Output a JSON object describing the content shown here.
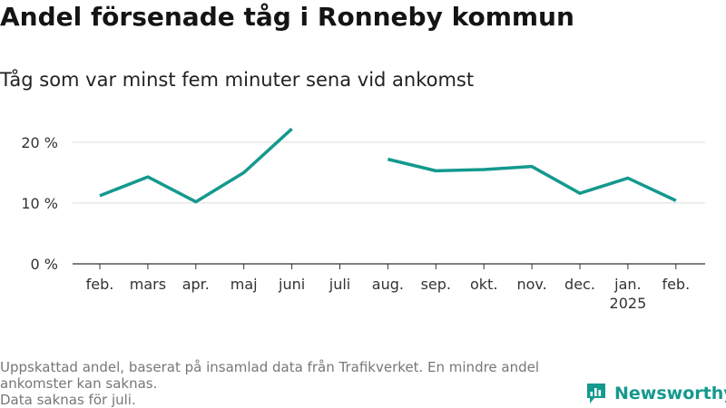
{
  "title": "Andel försenade tåg i Ronneby kommun",
  "subtitle": "Tåg som var minst fem minuter sena vid ankomst",
  "footnotes": [
    "Uppskattad andel, baserat på insamlad data från Trafikverket. En mindre andel ankomster kan saknas.",
    "Data saknas för juli."
  ],
  "brand": {
    "name": "Newsworthy",
    "icon": "newsworthy-logo-icon"
  },
  "colors": {
    "line": "#14998e",
    "grid": "#dddddd",
    "axis": "#333333"
  },
  "chart_data": {
    "type": "line",
    "title": "Andel försenade tåg i Ronneby kommun",
    "subtitle": "Tåg som var minst fem minuter sena vid ankomst",
    "categories": [
      "feb.",
      "mars",
      "apr.",
      "maj",
      "juni",
      "juli",
      "aug.",
      "sep.",
      "okt.",
      "nov.",
      "dec.",
      "jan.",
      "feb."
    ],
    "category_sublabels": [
      "",
      "",
      "",
      "",
      "",
      "",
      "",
      "",
      "",
      "",
      "",
      "2025",
      ""
    ],
    "series": [
      {
        "values": [
          11.2,
          14.3,
          10.2,
          15.0,
          22.2,
          null,
          17.2,
          15.3,
          15.5,
          16.0,
          11.6,
          14.1,
          10.4
        ]
      }
    ],
    "yticks": [
      0,
      10,
      20
    ],
    "ytick_labels": [
      "0 %",
      "10 %",
      "20 %"
    ],
    "ylim": [
      0,
      24
    ],
    "xlabel": "",
    "ylabel": "",
    "grid": true,
    "legend": "none"
  }
}
